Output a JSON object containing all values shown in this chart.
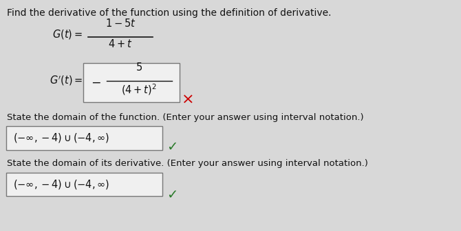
{
  "bg_color": "#d8d8d8",
  "title_text": "Find the derivative of the function using the definition of derivative.",
  "title_fontsize": 10.0,
  "title_color": "#111111",
  "box_color": "#f0f0f0",
  "box_edgecolor": "#777777",
  "wrong_mark_color": "#cc0000",
  "check_mark_color": "#2a7a2a",
  "domain_label": "State the domain of the function. (Enter your answer using interval notation.)",
  "deriv_domain_label": "State the domain of its derivative. (Enter your answer using interval notation.)",
  "font_size_body": 9.5,
  "font_size_math": 10.5
}
